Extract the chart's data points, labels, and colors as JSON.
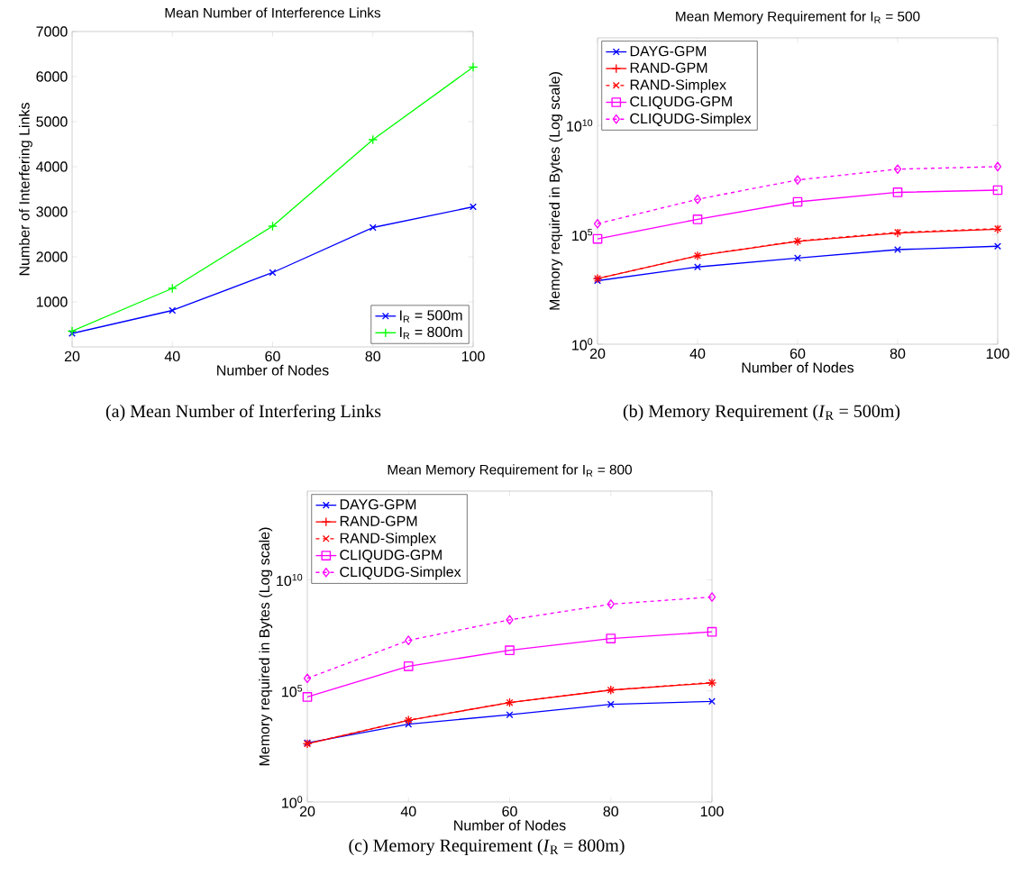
{
  "chart_data": [
    {
      "type": "line",
      "title": "Mean Number of Interference Links",
      "xlabel": "Number of Nodes",
      "ylabel": "Number of Interfering Links",
      "x": [
        20,
        40,
        60,
        80,
        100
      ],
      "xlim": [
        20,
        100
      ],
      "xticks": [
        20,
        40,
        60,
        80,
        100
      ],
      "ylim": [
        0,
        7000
      ],
      "yticks": [
        1000,
        2000,
        3000,
        4000,
        5000,
        6000,
        7000
      ],
      "legend": "bottom right",
      "grid": false,
      "series": [
        {
          "name": "I$_{R}$ = 500m",
          "color": "#0000ff",
          "marker": "cross",
          "line_style": "solid",
          "values": [
            300,
            810,
            1650,
            2650,
            3110
          ]
        },
        {
          "name": "I$_{R}$ = 800m",
          "color": "#00ff00",
          "marker": "plus",
          "line_style": "solid",
          "values": [
            350,
            1300,
            2680,
            4600,
            6210
          ]
        }
      ],
      "annotations": [
        "(a) Mean Number of Interfering Links"
      ]
    },
    {
      "type": "line",
      "title": "Mean Memory Requirement for I$_{R}$ = 500",
      "xlabel": "Number of Nodes",
      "ylabel": "Memory required in Bytes (Log scale)",
      "x": [
        20,
        40,
        60,
        80,
        100
      ],
      "xlim": [
        20,
        100
      ],
      "xticks": [
        20,
        40,
        60,
        80,
        100
      ],
      "log": "y",
      "ylim": [
        1,
        100000000000000.0
      ],
      "yticks": [
        {
          "value": 1,
          "label": "10$^{0}$"
        },
        {
          "value": 100000,
          "label": "10$^{5}$"
        },
        {
          "value": 10000000000,
          "label": "10$^{10}$"
        }
      ],
      "legend": "top left",
      "grid": false,
      "series": [
        {
          "name": "DAYG-GPM",
          "color": "#0000ff",
          "marker": "cross",
          "line_style": "solid",
          "values": [
            800,
            3400,
            8700,
            21000,
            30000
          ]
        },
        {
          "name": "RAND-GPM",
          "color": "#ff0000",
          "marker": "plus",
          "line_style": "solid",
          "values": [
            1000,
            11000,
            50000,
            120000,
            180000
          ]
        },
        {
          "name": "RAND-Simplex",
          "color": "#ff0000",
          "marker": "cross",
          "line_style": "dashed",
          "values": [
            1000,
            11000,
            52000,
            130000,
            190000
          ]
        },
        {
          "name": "CLIQUDG-GPM",
          "color": "#ff00ff",
          "marker": "square",
          "line_style": "solid",
          "values": [
            65000,
            510000,
            3200000,
            8700000,
            11000000
          ]
        },
        {
          "name": "CLIQUDG-Simplex",
          "color": "#ff00ff",
          "marker": "diamond",
          "line_style": "dashed",
          "values": [
            320000,
            4200000,
            32000000,
            100000000,
            130000000
          ]
        }
      ],
      "annotations": [
        "(b) Memory Requirement (*I*$_{R}$ = 500m)"
      ]
    },
    {
      "type": "line",
      "title": "Mean Memory Requirement for I$_{R}$ = 800",
      "xlabel": "Number of Nodes",
      "ylabel": "Memory required in Bytes (Log scale)",
      "x": [
        20,
        40,
        60,
        80,
        100
      ],
      "xlim": [
        20,
        100
      ],
      "xticks": [
        20,
        40,
        60,
        80,
        100
      ],
      "log": "y",
      "ylim": [
        1,
        100000000000000.0
      ],
      "yticks": [
        {
          "value": 1,
          "label": "10$^{0}$"
        },
        {
          "value": 100000,
          "label": "10$^{5}$"
        },
        {
          "value": 10000000000,
          "label": "10$^{10}$"
        }
      ],
      "legend": "top left",
      "grid": false,
      "series": [
        {
          "name": "DAYG-GPM",
          "color": "#0000ff",
          "marker": "cross",
          "line_style": "solid",
          "values": [
            460,
            3200,
            8500,
            25000,
            34000
          ]
        },
        {
          "name": "RAND-GPM",
          "color": "#ff0000",
          "marker": "plus",
          "line_style": "solid",
          "values": [
            420,
            4800,
            30000,
            110000,
            230000
          ]
        },
        {
          "name": "RAND-Simplex",
          "color": "#ff0000",
          "marker": "cross",
          "line_style": "dashed",
          "values": [
            420,
            4800,
            30000,
            110000,
            240000
          ]
        },
        {
          "name": "CLIQUDG-GPM",
          "color": "#ff00ff",
          "marker": "square",
          "line_style": "solid",
          "values": [
            54000,
            1300000,
            6800000,
            23000000,
            46000000
          ]
        },
        {
          "name": "CLIQUDG-Simplex",
          "color": "#ff00ff",
          "marker": "diamond",
          "line_style": "dashed",
          "values": [
            370000,
            19000000,
            160000000,
            810000000,
            1700000000
          ]
        }
      ],
      "annotations": [
        "(c) Memory Requirement (*I*$_{R}$ = 800m)"
      ]
    }
  ]
}
